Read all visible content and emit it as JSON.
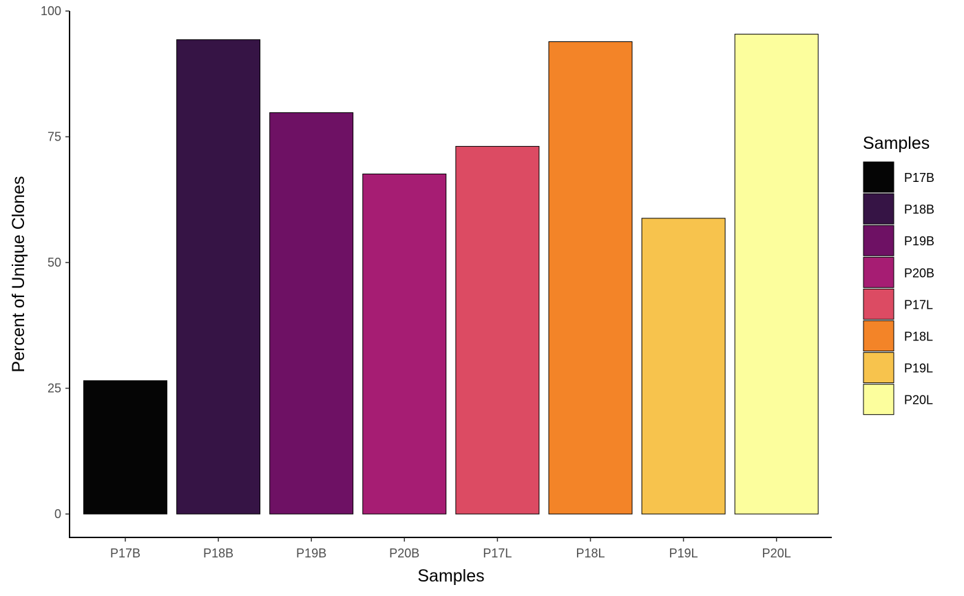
{
  "chart_data": {
    "type": "bar",
    "categories": [
      "P17B",
      "P18B",
      "P19B",
      "P20B",
      "P17L",
      "P18L",
      "P19L",
      "P20L"
    ],
    "values": [
      26.5,
      94.3,
      79.8,
      67.6,
      73.1,
      93.9,
      58.8,
      95.4
    ],
    "colors": [
      "#050505",
      "#361445",
      "#6E1164",
      "#A61D73",
      "#DC4B63",
      "#F38428",
      "#F7C34D",
      "#FCFE9D"
    ],
    "xlabel": "Samples",
    "ylabel": "Percent of Unique Clones",
    "ylim": [
      0,
      100
    ],
    "yticks": [
      0,
      25,
      50,
      75,
      100
    ],
    "grid": false,
    "legend": {
      "title": "Samples",
      "position": "right",
      "entries": [
        "P17B",
        "P18B",
        "P19B",
        "P20B",
        "P17L",
        "P18L",
        "P19L",
        "P20L"
      ]
    }
  }
}
